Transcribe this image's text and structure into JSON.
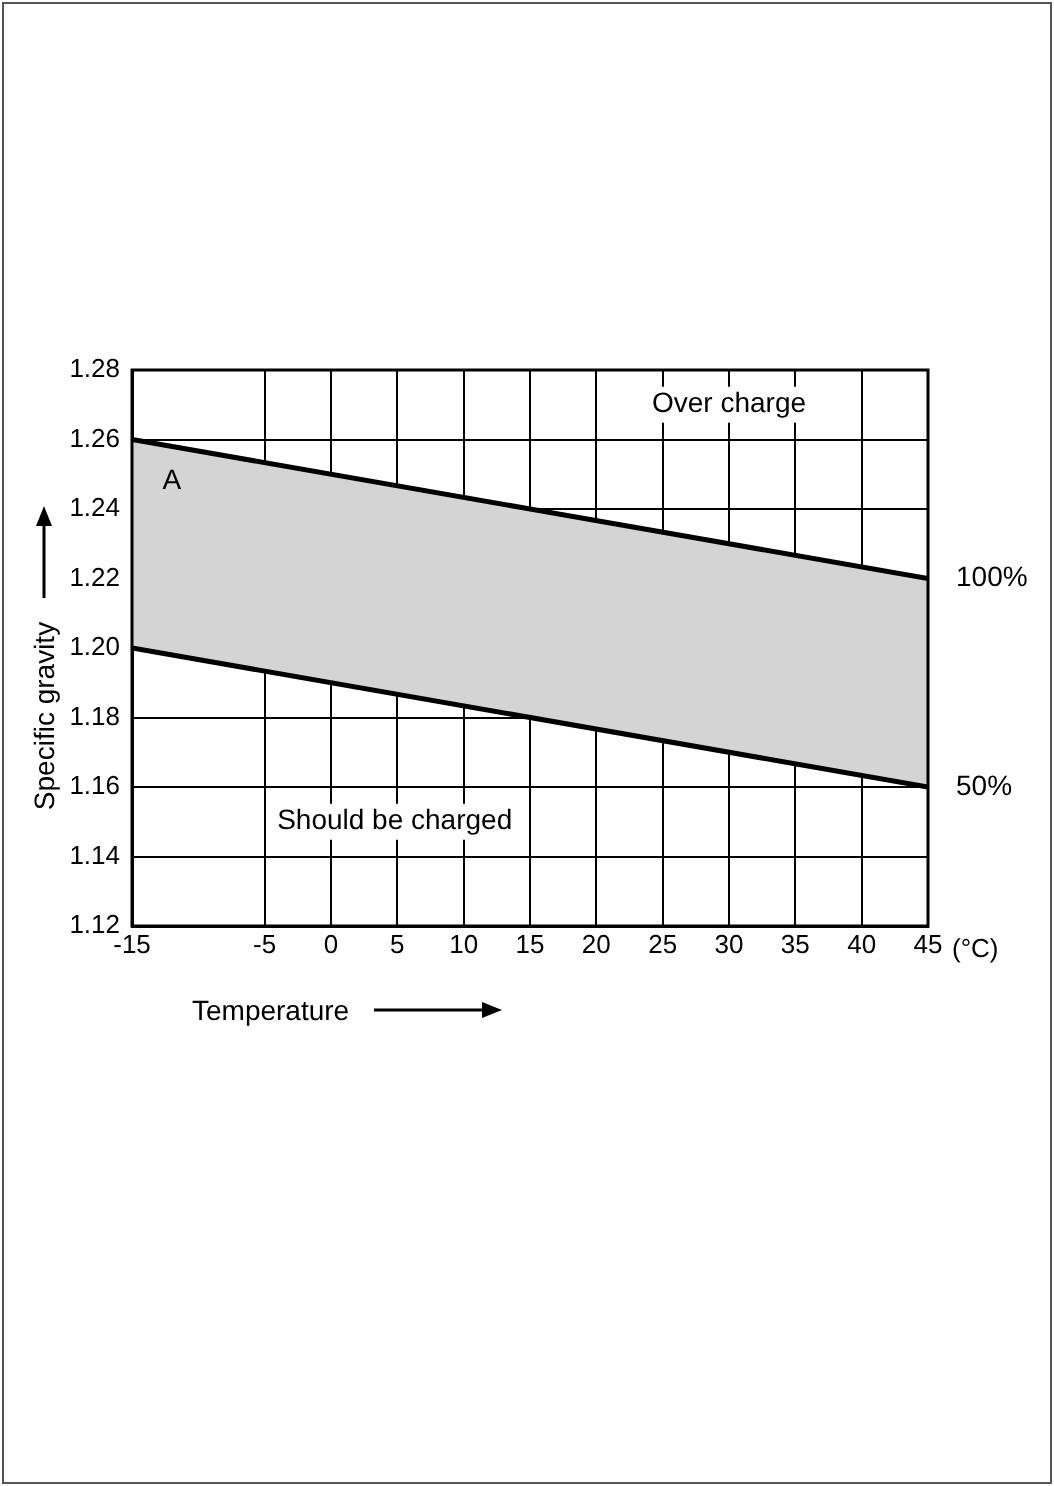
{
  "chart_data": {
    "type": "line",
    "xlabel": "Temperature",
    "ylabel": "Specific gravity",
    "x": [
      -15,
      45
    ],
    "series": [
      {
        "name": "100%",
        "color": "#000000",
        "values": [
          1.26,
          1.22
        ],
        "lower": [
          1.2,
          1.16
        ],
        "upper": [
          1.26,
          1.22
        ]
      },
      {
        "name": "50%",
        "color": "#000000",
        "values": [
          1.2,
          1.16
        ]
      }
    ],
    "xlim": [
      -15,
      45
    ],
    "xticks": [
      -15,
      -5,
      0,
      5,
      10,
      15,
      20,
      25,
      30,
      35,
      40,
      45
    ],
    "ylim": [
      1.12,
      1.28
    ],
    "yticks": [
      {
        "value": 1.12,
        "label": "1.12"
      },
      {
        "value": 1.14,
        "label": "1.14"
      },
      {
        "value": 1.16,
        "label": "1.16"
      },
      {
        "value": 1.18,
        "label": "1.18"
      },
      {
        "value": 1.2,
        "label": "1.20"
      },
      {
        "value": 1.22,
        "label": "1.22"
      },
      {
        "value": 1.24,
        "label": "1.24"
      },
      {
        "value": 1.26,
        "label": "1.26"
      },
      {
        "value": 1.28,
        "label": "1.28"
      }
    ],
    "grid": true,
    "marker": "none",
    "line_style": "solid",
    "legend": false,
    "annotations": [
      "Over charge",
      "A",
      "Should be charged",
      "(°C)"
    ]
  }
}
